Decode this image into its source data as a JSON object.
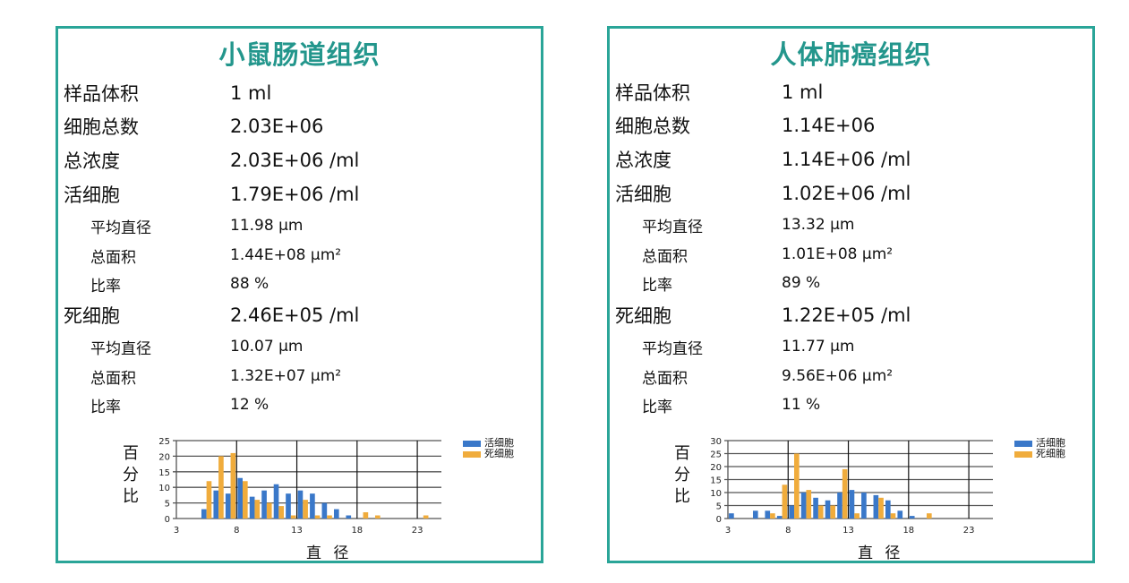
{
  "colors": {
    "border": "#2aa598",
    "title": "#23968c",
    "live": "#3a78c9",
    "dead": "#f0ac3c"
  },
  "panels": [
    {
      "title": "小鼠肠道组织",
      "sample_volume": {
        "label": "样品体积",
        "value": "1 ml"
      },
      "total_cells": {
        "label": "细胞总数",
        "value": "2.03E+06"
      },
      "total_concentration": {
        "label": "总浓度",
        "value": "2.03E+06 /ml"
      },
      "live": {
        "label": "活细胞",
        "value": "1.79E+06 /ml",
        "avg_diameter": {
          "label": "平均直径",
          "value": "11.98 μm"
        },
        "total_area": {
          "label": "总面积",
          "value": "1.44E+08 μm²"
        },
        "ratio": {
          "label": "比率",
          "value": "88 %"
        }
      },
      "dead": {
        "label": "死细胞",
        "value": "2.46E+05 /ml",
        "avg_diameter": {
          "label": "平均直径",
          "value": "10.07 μm"
        },
        "total_area": {
          "label": "总面积",
          "value": "1.32E+07 μm²"
        },
        "ratio": {
          "label": "比率",
          "value": "12 %"
        }
      },
      "chart": {
        "ylabel_chars": [
          "百",
          "分",
          "比"
        ],
        "xlabel": "直 径",
        "legend": [
          "活细胞",
          "死细胞"
        ]
      }
    },
    {
      "title": "人体肺癌组织",
      "sample_volume": {
        "label": "样品体积",
        "value": "1 ml"
      },
      "total_cells": {
        "label": "细胞总数",
        "value": "1.14E+06"
      },
      "total_concentration": {
        "label": "总浓度",
        "value": "1.14E+06 /ml"
      },
      "live": {
        "label": "活细胞",
        "value": "1.02E+06 /ml",
        "avg_diameter": {
          "label": "平均直径",
          "value": "13.32 μm"
        },
        "total_area": {
          "label": "总面积",
          "value": "1.01E+08 μm²"
        },
        "ratio": {
          "label": "比率",
          "value": "89 %"
        }
      },
      "dead": {
        "label": "死细胞",
        "value": "1.22E+05 /ml",
        "avg_diameter": {
          "label": "平均直径",
          "value": "11.77 μm"
        },
        "total_area": {
          "label": "总面积",
          "value": "9.56E+06 μm²"
        },
        "ratio": {
          "label": "比率",
          "value": "11 %"
        }
      },
      "chart": {
        "ylabel_chars": [
          "百",
          "分",
          "比"
        ],
        "xlabel": "直 径",
        "legend": [
          "活细胞",
          "死细胞"
        ]
      }
    }
  ],
  "chart_data": [
    {
      "type": "bar",
      "title": "小鼠肠道组织",
      "xlabel": "直径",
      "ylabel": "百分比",
      "xlim": [
        3,
        25
      ],
      "ylim": [
        0,
        25
      ],
      "xticks": [
        3,
        8,
        13,
        18,
        23
      ],
      "yticks": [
        0,
        5,
        10,
        15,
        20,
        25
      ],
      "grid": true,
      "legend_position": "top-right",
      "series": [
        {
          "name": "活细胞",
          "color": "#3a78c9",
          "x": [
            6,
            7,
            8,
            9,
            10,
            11,
            12,
            13,
            14,
            15,
            16,
            17,
            18
          ],
          "values": [
            3,
            9,
            8,
            13,
            7,
            9,
            11,
            8,
            9,
            8,
            5,
            3,
            1
          ]
        },
        {
          "name": "死细胞",
          "color": "#f0ac3c",
          "x": [
            6,
            7,
            8,
            9,
            10,
            11,
            12,
            13,
            14,
            15,
            16,
            19,
            20,
            24
          ],
          "values": [
            12,
            20,
            21,
            12,
            6,
            5,
            4,
            1,
            6,
            1,
            1,
            2,
            1,
            1
          ]
        }
      ]
    },
    {
      "type": "bar",
      "title": "人体肺癌组织",
      "xlabel": "直径",
      "ylabel": "百分比",
      "xlim": [
        3,
        25
      ],
      "ylim": [
        0,
        30
      ],
      "xticks": [
        3,
        8,
        13,
        18,
        23
      ],
      "yticks": [
        0,
        5,
        10,
        15,
        20,
        25,
        30
      ],
      "grid": true,
      "legend_position": "top-right",
      "series": [
        {
          "name": "活细胞",
          "color": "#3a78c9",
          "x": [
            4,
            6,
            7,
            8,
            9,
            10,
            11,
            12,
            13,
            14,
            15,
            16,
            17,
            18,
            19
          ],
          "values": [
            2,
            3,
            3,
            1,
            5,
            10,
            8,
            7,
            10,
            11,
            10,
            9,
            7,
            3,
            1
          ]
        },
        {
          "name": "死细胞",
          "color": "#f0ac3c",
          "x": [
            7,
            8,
            9,
            10,
            11,
            12,
            13,
            14,
            16,
            17,
            20
          ],
          "values": [
            2,
            13,
            25,
            11,
            5,
            5,
            19,
            2,
            8,
            2,
            2
          ]
        }
      ]
    }
  ]
}
